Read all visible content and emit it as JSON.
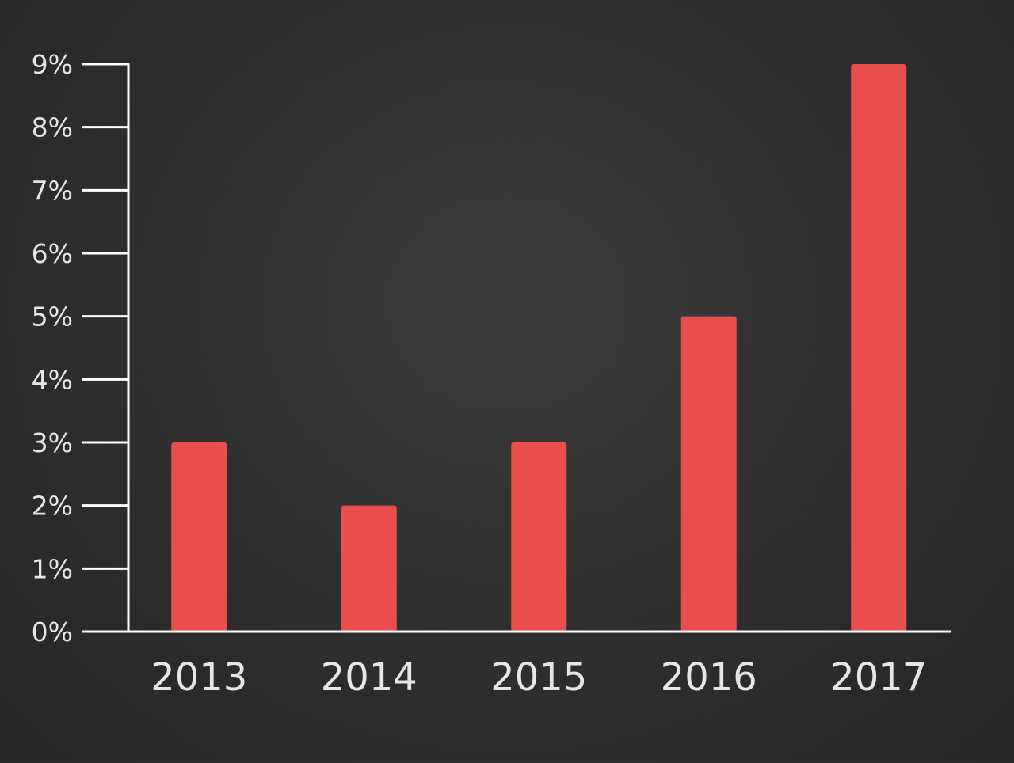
{
  "colors": {
    "bar": "#e84e4c",
    "axis": "#ffffff",
    "text": "#e6e6e6"
  },
  "chart_data": {
    "type": "bar",
    "title": "",
    "xlabel": "",
    "ylabel": "",
    "categories": [
      "2013",
      "2014",
      "2015",
      "2016",
      "2017"
    ],
    "values": [
      3,
      2,
      3,
      5,
      9
    ],
    "ylim": [
      0,
      9
    ],
    "y_ticks": [
      0,
      1,
      2,
      3,
      4,
      5,
      6,
      7,
      8,
      9
    ],
    "y_tick_suffix": "%",
    "grid": false,
    "legend": "none"
  }
}
